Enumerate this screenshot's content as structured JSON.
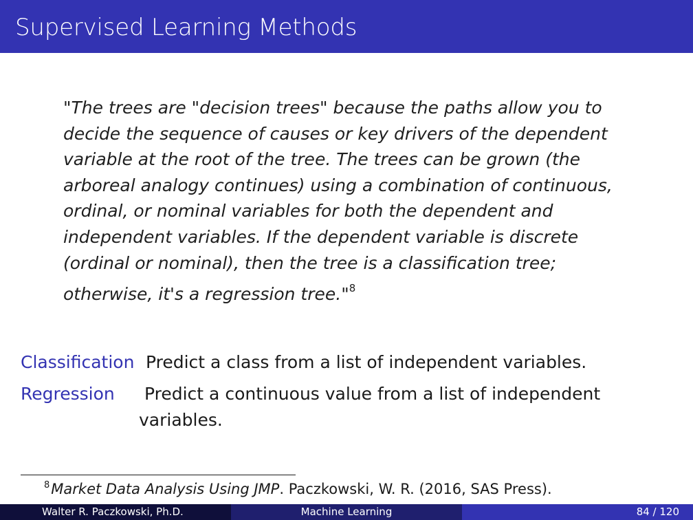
{
  "slide": {
    "title": "Supervised Learning Methods"
  },
  "quote": {
    "text": "\"The trees are \"decision trees\" because the paths allow you to decide the sequence of causes or key drivers of the dependent variable at the root of the tree. The trees can be grown (the arboreal analogy continues) using a combination of continuous, ordinal, or nominal variables for both the dependent and independent variables. If the dependent variable is discrete (ordinal or nominal), then the tree is a classification tree; otherwise, it's a regression tree.\"",
    "footnote_marker": "8"
  },
  "definitions": [
    {
      "term": "Classification",
      "line1": "Predict a class from a list of independent variables.",
      "line2": ""
    },
    {
      "term": "Regression",
      "line1": "Predict a continuous value from a list of independent",
      "line2": "variables."
    }
  ],
  "footnote": {
    "number": "8",
    "book_title": "Market Data Analysis Using JMP",
    "rest": ". Paczkowski, W. R. (2016, SAS Press)."
  },
  "footer": {
    "author": "Walter R. Paczkowski, Ph.D.",
    "topic": "Machine Learning",
    "page": "84 / 120"
  },
  "colors": {
    "title_bar": "#3333b2",
    "term": "#3333b2",
    "footer_left": "#0f0f3a",
    "footer_mid": "#1f1f6e",
    "footer_right": "#3333b2"
  }
}
